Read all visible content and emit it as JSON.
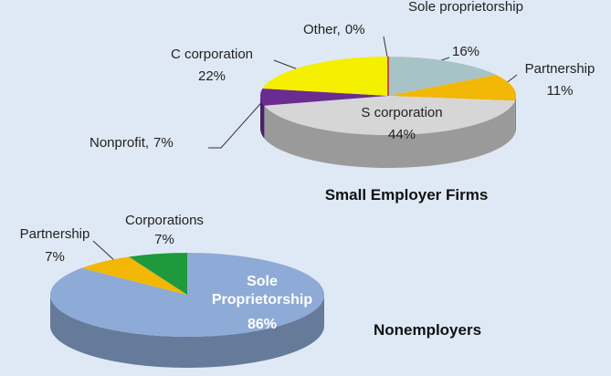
{
  "chart_data": [
    {
      "type": "pie3d",
      "title": "Small Employer Firms",
      "categories": [
        "Sole proprietorship",
        "Partnership",
        "S corporation",
        "Nonprofit,",
        "C  corporation",
        "Other,"
      ],
      "values": [
        16,
        11,
        44,
        7,
        22,
        0
      ],
      "value_labels": [
        "16%",
        "11%",
        "44%",
        "7%",
        "22%",
        "0%"
      ],
      "colors": [
        "#a8c3c6",
        "#f2b705",
        "#d6d6d6",
        "#6a2c91",
        "#f4f000",
        "#c0504d"
      ]
    },
    {
      "type": "pie3d",
      "title": "Nonemployers",
      "categories": [
        "Sole Proprietorship",
        "Partnership",
        "Corporations"
      ],
      "values": [
        86,
        7,
        7
      ],
      "value_labels": [
        "86%",
        "7%",
        "7%"
      ],
      "colors": [
        "#8eaad6",
        "#f2b705",
        "#1e9a3c"
      ]
    }
  ]
}
